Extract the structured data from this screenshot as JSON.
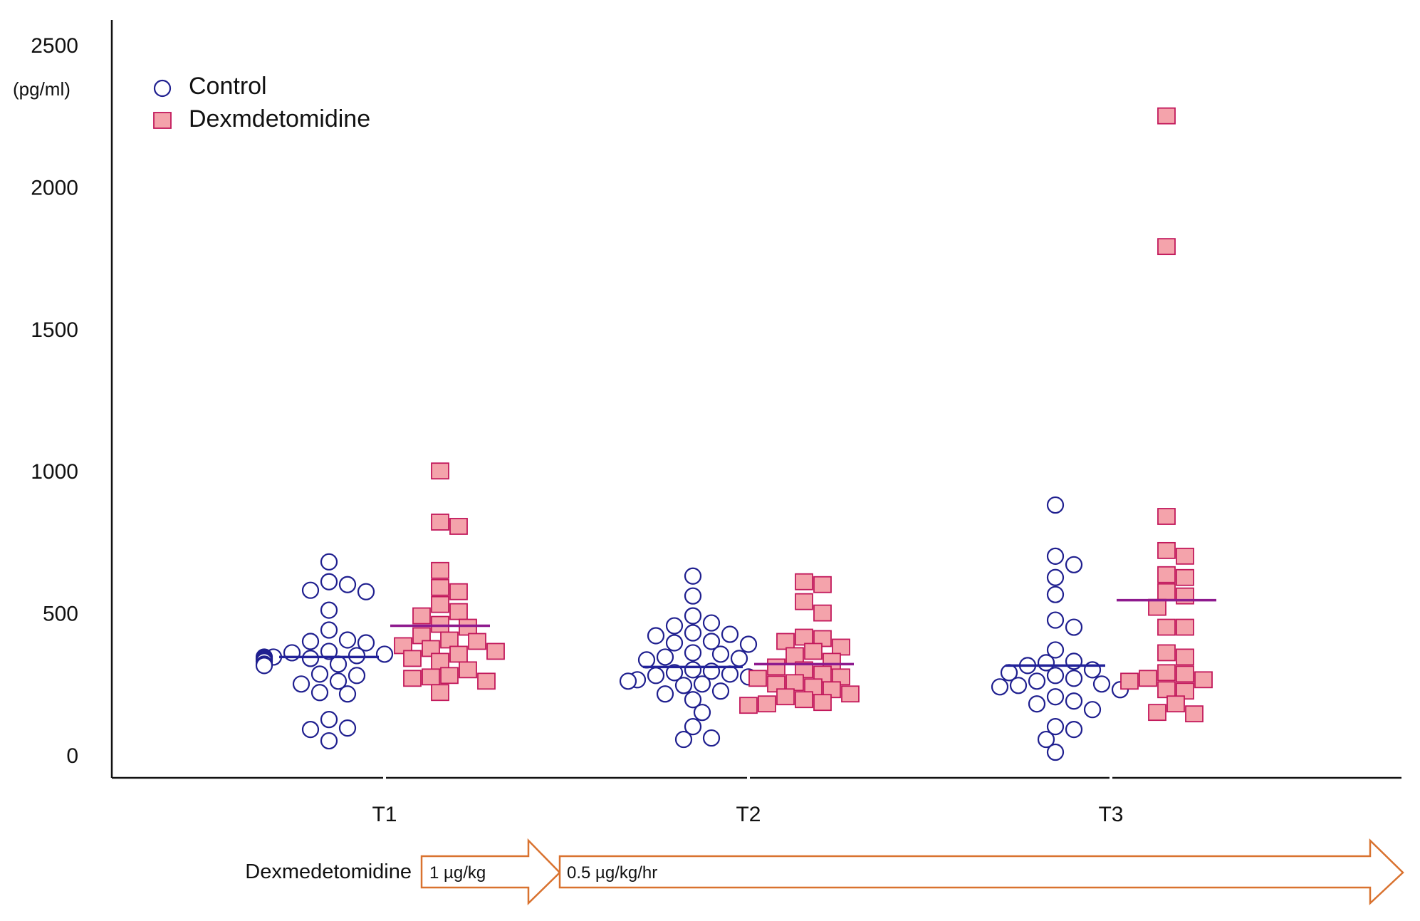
{
  "chart_data": {
    "type": "scatter",
    "title": "",
    "ylabel_unit": "(pg/ml)",
    "ylim": [
      0,
      2500
    ],
    "yticks": [
      0,
      500,
      1000,
      1500,
      2000,
      2500
    ],
    "categories": [
      "T1",
      "T2",
      "T3"
    ],
    "legend": [
      "Control",
      "Dexmdetomidine"
    ],
    "colors": {
      "control": "#1f1f8f",
      "dex_fill": "#f4a3ab",
      "dex_edge": "#c2185b",
      "control_mean": "#22229a",
      "dex_mean": "#8e1a8e",
      "arrow": "#d9722f"
    },
    "series": [
      {
        "name": "Control",
        "marker": "circle",
        "points": [
          {
            "cat": "T1",
            "values": [
              680,
              610,
              600,
              580,
              575,
              510,
              440,
              405,
              400,
              395,
              365,
              360,
              355,
              350,
              345,
              345,
              340,
              340,
              335,
              330,
              320,
              320,
              315,
              285,
              280,
              260,
              250,
              220,
              215,
              125,
              95,
              90,
              50
            ]
          },
          {
            "cat": "T2",
            "values": [
              630,
              560,
              490,
              465,
              455,
              430,
              425,
              420,
              400,
              395,
              390,
              360,
              355,
              345,
              340,
              335,
              300,
              295,
              290,
              285,
              280,
              275,
              265,
              260,
              250,
              245,
              225,
              215,
              195,
              150,
              100,
              60,
              55
            ]
          },
          {
            "cat": "T3",
            "values": [
              880,
              700,
              670,
              625,
              565,
              475,
              450,
              370,
              330,
              325,
              315,
              300,
              290,
              280,
              270,
              260,
              250,
              245,
              240,
              230,
              205,
              190,
              180,
              160,
              100,
              90,
              55,
              10
            ]
          }
        ],
        "means": {
          "T1": 345,
          "T2": 310,
          "T3": 315
        }
      },
      {
        "name": "Dexmdetomidine",
        "marker": "square",
        "points": [
          {
            "cat": "T1",
            "values": [
              1000,
              820,
              805,
              650,
              590,
              575,
              530,
              505,
              490,
              460,
              450,
              420,
              405,
              400,
              385,
              375,
              365,
              355,
              340,
              330,
              300,
              280,
              275,
              270,
              260,
              220
            ]
          },
          {
            "cat": "T2",
            "values": [
              610,
              600,
              540,
              500,
              415,
              410,
              400,
              380,
              365,
              350,
              330,
              310,
              300,
              285,
              275,
              270,
              255,
              250,
              240,
              230,
              215,
              205,
              195,
              185,
              180,
              175
            ]
          },
          {
            "cat": "T3",
            "values": [
              2250,
              1790,
              840,
              720,
              700,
              635,
              625,
              575,
              560,
              520,
              450,
              450,
              360,
              345,
              290,
              285,
              270,
              265,
              260,
              230,
              225,
              180,
              150,
              145
            ]
          }
        ],
        "means": {
          "T1": 455,
          "T2": 320,
          "T3": 545
        }
      }
    ],
    "annotation": {
      "lead_label": "Dexmedetomidine",
      "bolus_label": "1 µg/kg",
      "infusion_label": "0.5 µg/kg/hr"
    }
  }
}
